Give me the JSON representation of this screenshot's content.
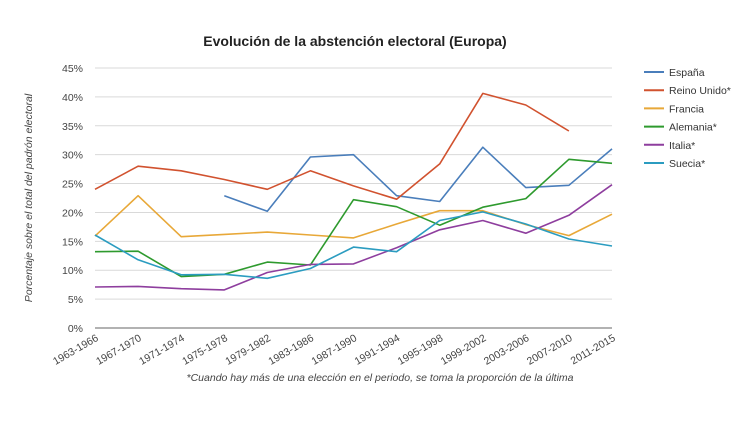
{
  "chart_data": {
    "type": "line",
    "title": "Evolución de la abstención electoral (Europa)",
    "ylabel": "Porcentaje sobre el total del padrón electoral",
    "xlabel": "*Cuando hay más de una elección en el periodo, se toma la proporción de la última",
    "ylim": [
      0,
      45
    ],
    "y_ticks": [
      "0%",
      "5%",
      "10%",
      "15%",
      "20%",
      "25%",
      "30%",
      "35%",
      "40%",
      "45%"
    ],
    "grid": true,
    "legend_position": "right",
    "categories": [
      "1963-1966",
      "1967-1970",
      "1971-1974",
      "1975-1978",
      "1979-1982",
      "1983-1986",
      "1987-1990",
      "1991-1994",
      "1995-1998",
      "1999-2002",
      "2003-2006",
      "2007-2010",
      "2011-2015"
    ],
    "series": [
      {
        "name": "España",
        "color": "#4a7ebb",
        "values": [
          null,
          null,
          null,
          22.9,
          20.2,
          29.6,
          30.0,
          22.9,
          21.9,
          31.3,
          24.3,
          24.7,
          31.0
        ]
      },
      {
        "name": "Reino Unido*",
        "color": "#d1522f",
        "values": [
          24.0,
          28.0,
          27.2,
          25.7,
          24.0,
          27.2,
          24.6,
          22.3,
          28.4,
          40.6,
          38.6,
          34.1,
          null
        ]
      },
      {
        "name": "Francia",
        "color": "#e8a838",
        "values": [
          15.9,
          22.9,
          15.8,
          16.2,
          16.6,
          16.1,
          15.6,
          18.0,
          20.3,
          20.3,
          17.9,
          16.0,
          19.7
        ]
      },
      {
        "name": "Alemania*",
        "color": "#2e9a2e",
        "values": [
          13.2,
          13.3,
          8.9,
          9.3,
          11.4,
          10.9,
          22.2,
          21.0,
          17.8,
          20.9,
          22.4,
          29.2,
          28.5
        ]
      },
      {
        "name": "Italia*",
        "color": "#8e3e9e",
        "values": [
          7.1,
          7.2,
          6.8,
          6.6,
          9.6,
          11.0,
          11.1,
          13.9,
          17.0,
          18.6,
          16.4,
          19.5,
          24.8
        ]
      },
      {
        "name": "Suecia*",
        "color": "#2b9cc0",
        "values": [
          16.1,
          11.8,
          9.2,
          9.3,
          8.6,
          10.3,
          14.0,
          13.2,
          18.6,
          20.1,
          18.0,
          15.4,
          14.2
        ]
      }
    ]
  }
}
